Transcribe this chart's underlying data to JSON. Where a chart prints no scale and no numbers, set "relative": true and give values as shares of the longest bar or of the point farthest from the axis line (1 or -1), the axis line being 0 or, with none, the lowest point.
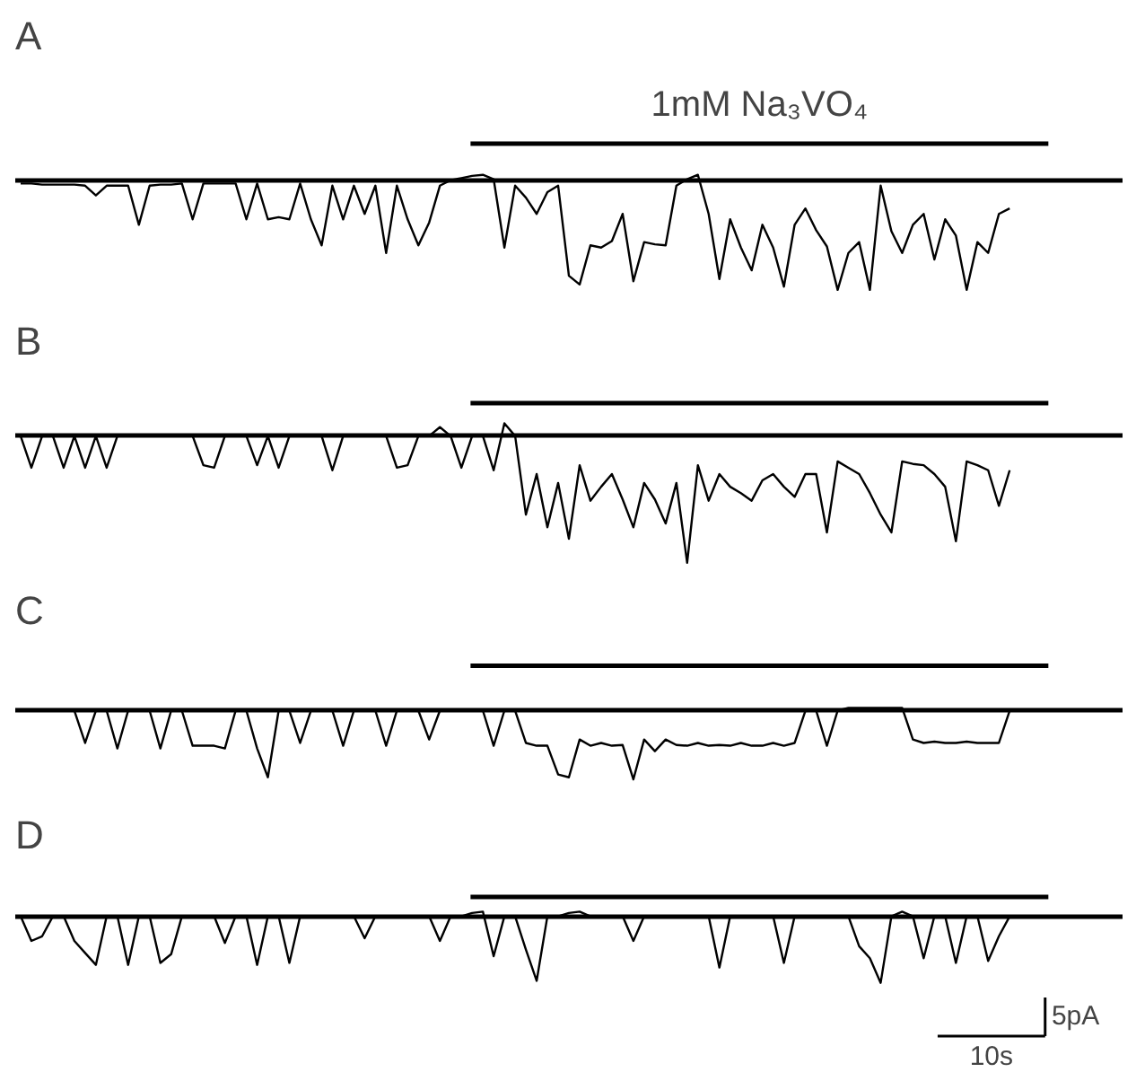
{
  "chart_data": [
    {
      "type": "line",
      "title": "A",
      "relative": true,
      "tick_labels": false,
      "annotations": [
        "1mM Na₃VO₄"
      ],
      "categories": [
        null,
        null,
        null,
        null,
        null,
        null,
        null,
        null,
        null,
        null,
        null,
        null,
        null,
        null,
        null,
        null,
        null,
        null,
        null,
        null,
        null,
        null,
        null,
        null,
        null,
        null,
        null,
        null,
        null,
        null,
        null,
        null,
        null,
        null,
        null,
        null,
        null,
        null,
        null,
        null,
        null,
        null,
        null,
        null,
        null,
        null,
        null,
        null,
        null,
        null,
        null,
        null,
        null,
        null,
        null,
        null,
        null,
        null,
        null,
        null,
        null,
        null,
        null,
        null,
        null,
        null,
        null,
        null,
        null,
        null,
        null,
        null,
        null,
        null,
        null,
        null,
        null,
        null,
        null,
        null,
        null,
        null,
        null,
        null,
        null,
        null,
        null,
        null,
        null,
        null,
        null,
        null,
        null
      ],
      "series": [
        {
          "color": "#000000",
          "values": [
            -0.02,
            -0.02,
            -0.03,
            -0.03,
            -0.03,
            -0.03,
            -0.04,
            -0.13,
            -0.04,
            -0.04,
            -0.04,
            -0.4,
            -0.04,
            -0.03,
            -0.03,
            -0.02,
            -0.35,
            -0.02,
            -0.02,
            -0.02,
            -0.02,
            -0.35,
            -0.02,
            -0.35,
            -0.33,
            -0.35,
            -0.02,
            -0.35,
            -0.59,
            -0.04,
            -0.35,
            -0.04,
            -0.3,
            -0.04,
            -0.66,
            -0.04,
            -0.35,
            -0.59,
            -0.38,
            -0.04,
            0.01,
            0.03,
            0.05,
            0.06,
            0.02,
            -0.61,
            -0.04,
            -0.15,
            -0.3,
            -0.1,
            -0.04,
            -0.87,
            -0.95,
            -0.59,
            -0.61,
            -0.55,
            -0.3,
            -0.92,
            -0.56,
            -0.58,
            -0.59,
            -0.04,
            0.02,
            0.06,
            -0.3,
            -0.9,
            -0.35,
            -0.61,
            -0.82,
            -0.4,
            -0.61,
            -0.97,
            -0.4,
            -0.25,
            -0.45,
            -0.6,
            -1.0,
            -0.66,
            -0.56,
            -1.0,
            -0.04,
            -0.46,
            -0.66,
            -0.4,
            -0.3,
            -0.72,
            -0.35,
            -0.5,
            -1.0,
            -0.56,
            -0.66,
            -0.3,
            -0.25
          ]
        }
      ]
    },
    {
      "type": "line",
      "title": "B",
      "relative": true,
      "tick_labels": false,
      "categories": [
        null,
        null,
        null,
        null,
        null,
        null,
        null,
        null,
        null,
        null,
        null,
        null,
        null,
        null,
        null,
        null,
        null,
        null,
        null,
        null,
        null,
        null,
        null,
        null,
        null,
        null,
        null,
        null,
        null,
        null,
        null,
        null,
        null,
        null,
        null,
        null,
        null,
        null,
        null,
        null,
        null,
        null,
        null,
        null,
        null,
        null,
        null,
        null,
        null,
        null,
        null,
        null,
        null,
        null,
        null,
        null,
        null,
        null,
        null,
        null,
        null,
        null,
        null,
        null,
        null,
        null,
        null,
        null,
        null,
        null,
        null,
        null,
        null,
        null,
        null,
        null,
        null,
        null,
        null,
        null,
        null,
        null,
        null,
        null,
        null,
        null,
        null,
        null,
        null,
        null,
        null,
        null,
        null
      ],
      "series": [
        {
          "color": "#000000",
          "values": [
            0,
            -0.25,
            0,
            0,
            -0.25,
            0,
            -0.25,
            0,
            -0.25,
            0,
            0,
            0,
            0,
            0,
            0,
            0,
            0,
            -0.23,
            -0.25,
            0,
            0,
            0,
            -0.23,
            0,
            -0.25,
            0,
            0,
            0,
            0,
            -0.27,
            0,
            0,
            0,
            0,
            0,
            -0.25,
            -0.23,
            0,
            0,
            0.07,
            0,
            -0.25,
            0,
            0,
            -0.27,
            0.1,
            0,
            -0.62,
            -0.3,
            -0.72,
            -0.37,
            -0.81,
            -0.23,
            -0.51,
            -0.4,
            -0.3,
            -0.5,
            -0.72,
            -0.37,
            -0.5,
            -0.69,
            -0.37,
            -1.0,
            -0.23,
            -0.51,
            -0.3,
            -0.4,
            -0.45,
            -0.51,
            -0.35,
            -0.3,
            -0.4,
            -0.48,
            -0.3,
            -0.3,
            -0.76,
            -0.2,
            -0.25,
            -0.3,
            -0.45,
            -0.62,
            -0.76,
            -0.2,
            -0.22,
            -0.23,
            -0.3,
            -0.4,
            -0.83,
            -0.2,
            -0.23,
            -0.27,
            -0.55,
            -0.27
          ]
        }
      ]
    },
    {
      "type": "line",
      "title": "C",
      "relative": true,
      "tick_labels": false,
      "categories": [
        null,
        null,
        null,
        null,
        null,
        null,
        null,
        null,
        null,
        null,
        null,
        null,
        null,
        null,
        null,
        null,
        null,
        null,
        null,
        null,
        null,
        null,
        null,
        null,
        null,
        null,
        null,
        null,
        null,
        null,
        null,
        null,
        null,
        null,
        null,
        null,
        null,
        null,
        null,
        null,
        null,
        null,
        null,
        null,
        null,
        null,
        null,
        null,
        null,
        null,
        null,
        null,
        null,
        null,
        null,
        null,
        null,
        null,
        null,
        null,
        null,
        null,
        null,
        null,
        null,
        null,
        null,
        null,
        null,
        null,
        null,
        null,
        null,
        null,
        null,
        null,
        null,
        null,
        null,
        null,
        null,
        null,
        null,
        null,
        null,
        null,
        null,
        null,
        null,
        null,
        null,
        null,
        null
      ],
      "series": [
        {
          "color": "#000000",
          "values": [
            0,
            0,
            0,
            0,
            0,
            0,
            -0.47,
            0,
            0,
            -0.55,
            0,
            0,
            0,
            -0.55,
            0,
            0,
            -0.51,
            -0.51,
            -0.51,
            -0.55,
            0,
            0,
            -0.55,
            -0.97,
            0,
            0,
            -0.47,
            0,
            0,
            0,
            -0.51,
            0,
            0,
            0,
            -0.51,
            0,
            0,
            0,
            -0.42,
            0,
            0,
            0,
            0,
            0,
            -0.51,
            0,
            0,
            -0.47,
            -0.51,
            -0.51,
            -0.93,
            -0.97,
            -0.42,
            -0.51,
            -0.47,
            -0.51,
            -0.5,
            -1.0,
            -0.42,
            -0.59,
            -0.42,
            -0.5,
            -0.51,
            -0.47,
            -0.51,
            -0.5,
            -0.51,
            -0.47,
            -0.51,
            -0.51,
            -0.47,
            -0.51,
            -0.47,
            0,
            0,
            -0.51,
            0,
            0.04,
            0.04,
            0.04,
            0.04,
            0.04,
            0.04,
            -0.42,
            -0.47,
            -0.45,
            -0.47,
            -0.47,
            -0.45,
            -0.47,
            -0.47,
            -0.47,
            0
          ]
        }
      ]
    },
    {
      "type": "line",
      "title": "D",
      "relative": true,
      "tick_labels": false,
      "annotations": [
        "5pA",
        "10s"
      ],
      "categories": [
        null,
        null,
        null,
        null,
        null,
        null,
        null,
        null,
        null,
        null,
        null,
        null,
        null,
        null,
        null,
        null,
        null,
        null,
        null,
        null,
        null,
        null,
        null,
        null,
        null,
        null,
        null,
        null,
        null,
        null,
        null,
        null,
        null,
        null,
        null,
        null,
        null,
        null,
        null,
        null,
        null,
        null,
        null,
        null,
        null,
        null,
        null,
        null,
        null,
        null,
        null,
        null,
        null,
        null,
        null,
        null,
        null,
        null,
        null,
        null,
        null,
        null,
        null,
        null,
        null,
        null,
        null,
        null,
        null,
        null,
        null,
        null,
        null,
        null,
        null,
        null,
        null,
        null,
        null,
        null,
        null,
        null,
        null,
        null,
        null,
        null,
        null,
        null,
        null,
        null,
        null,
        null,
        null
      ],
      "series": [
        {
          "color": "#000000",
          "values": [
            0,
            -0.37,
            -0.3,
            0,
            0,
            -0.37,
            -0.55,
            -0.73,
            0,
            0,
            -0.73,
            0,
            0,
            -0.7,
            -0.57,
            0,
            0,
            0,
            0,
            -0.4,
            0,
            0,
            -0.73,
            0,
            0,
            -0.7,
            0,
            0,
            0,
            0,
            0,
            0,
            -0.33,
            0,
            0,
            0,
            0,
            0,
            0,
            -0.37,
            0,
            0,
            0.05,
            0.07,
            -0.6,
            0,
            0,
            -0.5,
            -0.97,
            0,
            0,
            0.05,
            0.07,
            0,
            0,
            0,
            0,
            -0.37,
            0,
            0,
            0,
            0,
            0,
            0,
            0,
            -0.77,
            0,
            0,
            0,
            0,
            0,
            -0.7,
            0,
            0,
            0,
            0,
            0,
            0,
            -0.45,
            -0.63,
            -1.0,
            0,
            0.07,
            0,
            -0.63,
            0,
            0,
            -0.7,
            0,
            0,
            -0.67,
            -0.3,
            0
          ]
        }
      ]
    }
  ]
}
